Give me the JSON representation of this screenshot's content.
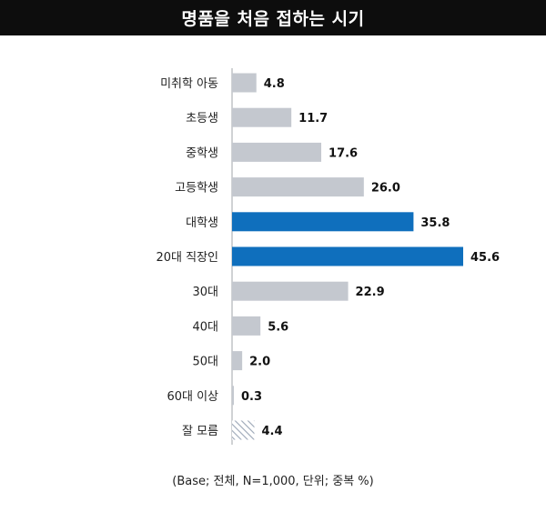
{
  "title": "명품을 처음 접하는 시기",
  "footnote": "(Base; 전체, N=1,000, 단위; 중복 %)",
  "colors": {
    "default": "#c4c8cf",
    "highlight": "#0f6fbd",
    "axis": "#a0a4aa",
    "hatch": "#9ba6b6"
  },
  "chart_data": {
    "type": "bar",
    "orientation": "horizontal",
    "categories": [
      "미취학 아동",
      "초등생",
      "중학생",
      "고등학생",
      "대학생",
      "20대 직장인",
      "30대",
      "40대",
      "50대",
      "60대 이상",
      "잘 모름"
    ],
    "values": [
      4.8,
      11.7,
      17.6,
      26.0,
      35.8,
      45.6,
      22.9,
      5.6,
      2.0,
      0.3,
      4.4
    ],
    "value_labels": [
      "4.8",
      "11.7",
      "17.6",
      "26.0",
      "35.8",
      "45.6",
      "22.9",
      "5.6",
      "2.0",
      "0.3",
      "4.4"
    ],
    "highlighted": [
      "대학생",
      "20대 직장인"
    ],
    "hatched": [
      "잘 모름"
    ],
    "xlim": [
      0,
      50
    ],
    "grid": false,
    "legend": "none"
  }
}
